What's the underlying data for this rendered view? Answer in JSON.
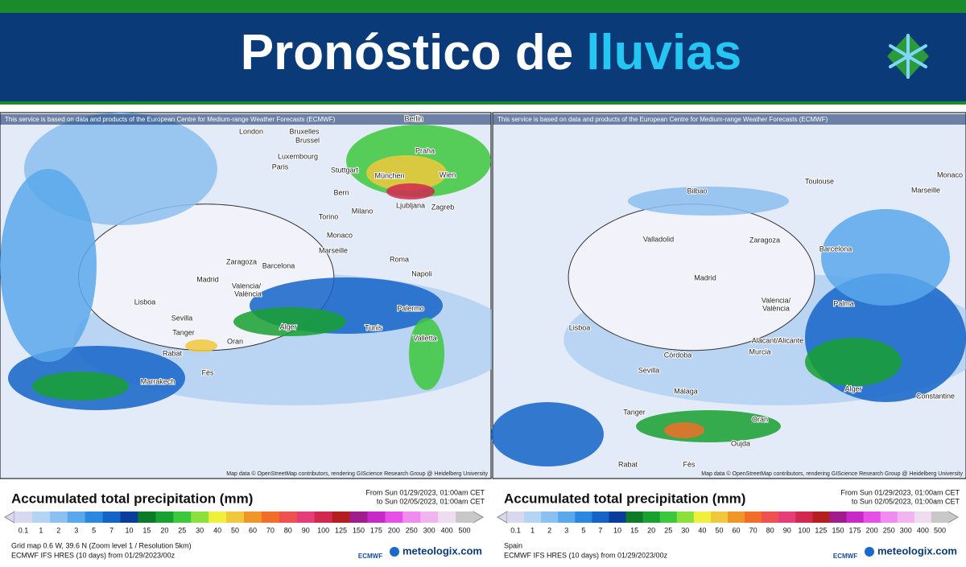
{
  "header": {
    "title_part1": "Pronóstico de",
    "title_part2": "lluvias"
  },
  "legend_colors": [
    "#d8d8f0",
    "#b4d4f4",
    "#8cc0f0",
    "#5aa8ec",
    "#2a88e0",
    "#1464c8",
    "#0a3c9c",
    "#0c7a28",
    "#18a030",
    "#3cc83c",
    "#8ce03c",
    "#f0f03c",
    "#f0c83c",
    "#f09628",
    "#f06e28",
    "#f05050",
    "#e63c78",
    "#d22850",
    "#b41e1e",
    "#a01e8c",
    "#c828c8",
    "#e650e6",
    "#f08cf0",
    "#f0b4f0",
    "#f0dcf0",
    "#c8c8c8"
  ],
  "panels": [
    {
      "attribution": "This service is based on data and products of the European Centre for Medium-range Weather Forecasts (ECMWF)",
      "map_credit": "Map data © OpenStreetMap contributors, rendering GIScience Research Group @ Heidelberg University",
      "cities": [
        "London",
        "Bruxelles",
        "Brussel",
        "Luxembourg",
        "Paris",
        "Stuttgart",
        "München",
        "Wien",
        "Bern",
        "Milano",
        "Ljubljana",
        "Zagreb",
        "Torino",
        "Monaco",
        "Marseille",
        "Roma",
        "Napoli",
        "Barcelona",
        "Zaragoza",
        "Madrid",
        "Valencia/",
        "València",
        "Lisboa",
        "Sevilla",
        "Tanger",
        "Rabat",
        "Fès",
        "Marrakech",
        "Alger",
        "Oran",
        "Tunis",
        "Palermo",
        "Valletta",
        "Berlin",
        "Praha"
      ],
      "legend_title": "Accumulated total precipitation (mm)",
      "from": "From Sun 01/29/2023, 01:00am CET",
      "to": "to Sun 02/05/2023, 01:00am CET",
      "legend_labels": [
        "0.1",
        "1",
        "2",
        "3",
        "5",
        "7",
        "10",
        "15",
        "20",
        "25",
        "30",
        "40",
        "50",
        "60",
        "70",
        "80",
        "90",
        "100",
        "125",
        "150",
        "175",
        "200",
        "250",
        "300",
        "400",
        "500"
      ],
      "footer": [
        "Grid map 0.6 W, 39.6 N (Zoom level 1 / Resolution 5km)",
        "ECMWF IFS HRES (10 days) from 01/29/2023/00z"
      ],
      "logo_ecmwf": "ECMWF",
      "logo_site": "meteologix.com"
    },
    {
      "attribution": "This service is based on data and products of the European Centre for Medium-range Weather Forecasts (ECMWF)",
      "map_credit": "Map data © OpenStreetMap contributors, rendering GIScience Research Group @ Heidelberg University",
      "cities": [
        "Bilbao",
        "Toulouse",
        "Marseille",
        "Monaco",
        "Valladolid",
        "Zaragoza",
        "Barcelona",
        "Madrid",
        "Palma",
        "Valencia/",
        "València",
        "Lisboa",
        "Alacant/Alicante",
        "Murcia",
        "Córdoba",
        "Sevilla",
        "Málaga",
        "Tanger",
        "Oran",
        "Alger",
        "Constantine",
        "Oujda",
        "Rabat",
        "Fès"
      ],
      "legend_title": "Accumulated total precipitation (mm)",
      "from": "From Sun 01/29/2023, 01:00am CET",
      "to": "to Sun 02/05/2023, 01:00am CET",
      "legend_labels": [
        "0.1",
        "1",
        "2",
        "3",
        "5",
        "7",
        "10",
        "15",
        "20",
        "25",
        "30",
        "40",
        "50",
        "60",
        "70",
        "80",
        "90",
        "100",
        "125",
        "150",
        "175",
        "200",
        "250",
        "300",
        "400",
        "500"
      ],
      "footer": [
        "Spain",
        "ECMWF IFS HRES (10 days) from 01/29/2023/00z"
      ],
      "logo_ecmwf": "ECMWF",
      "logo_site": "meteologix.com"
    }
  ]
}
